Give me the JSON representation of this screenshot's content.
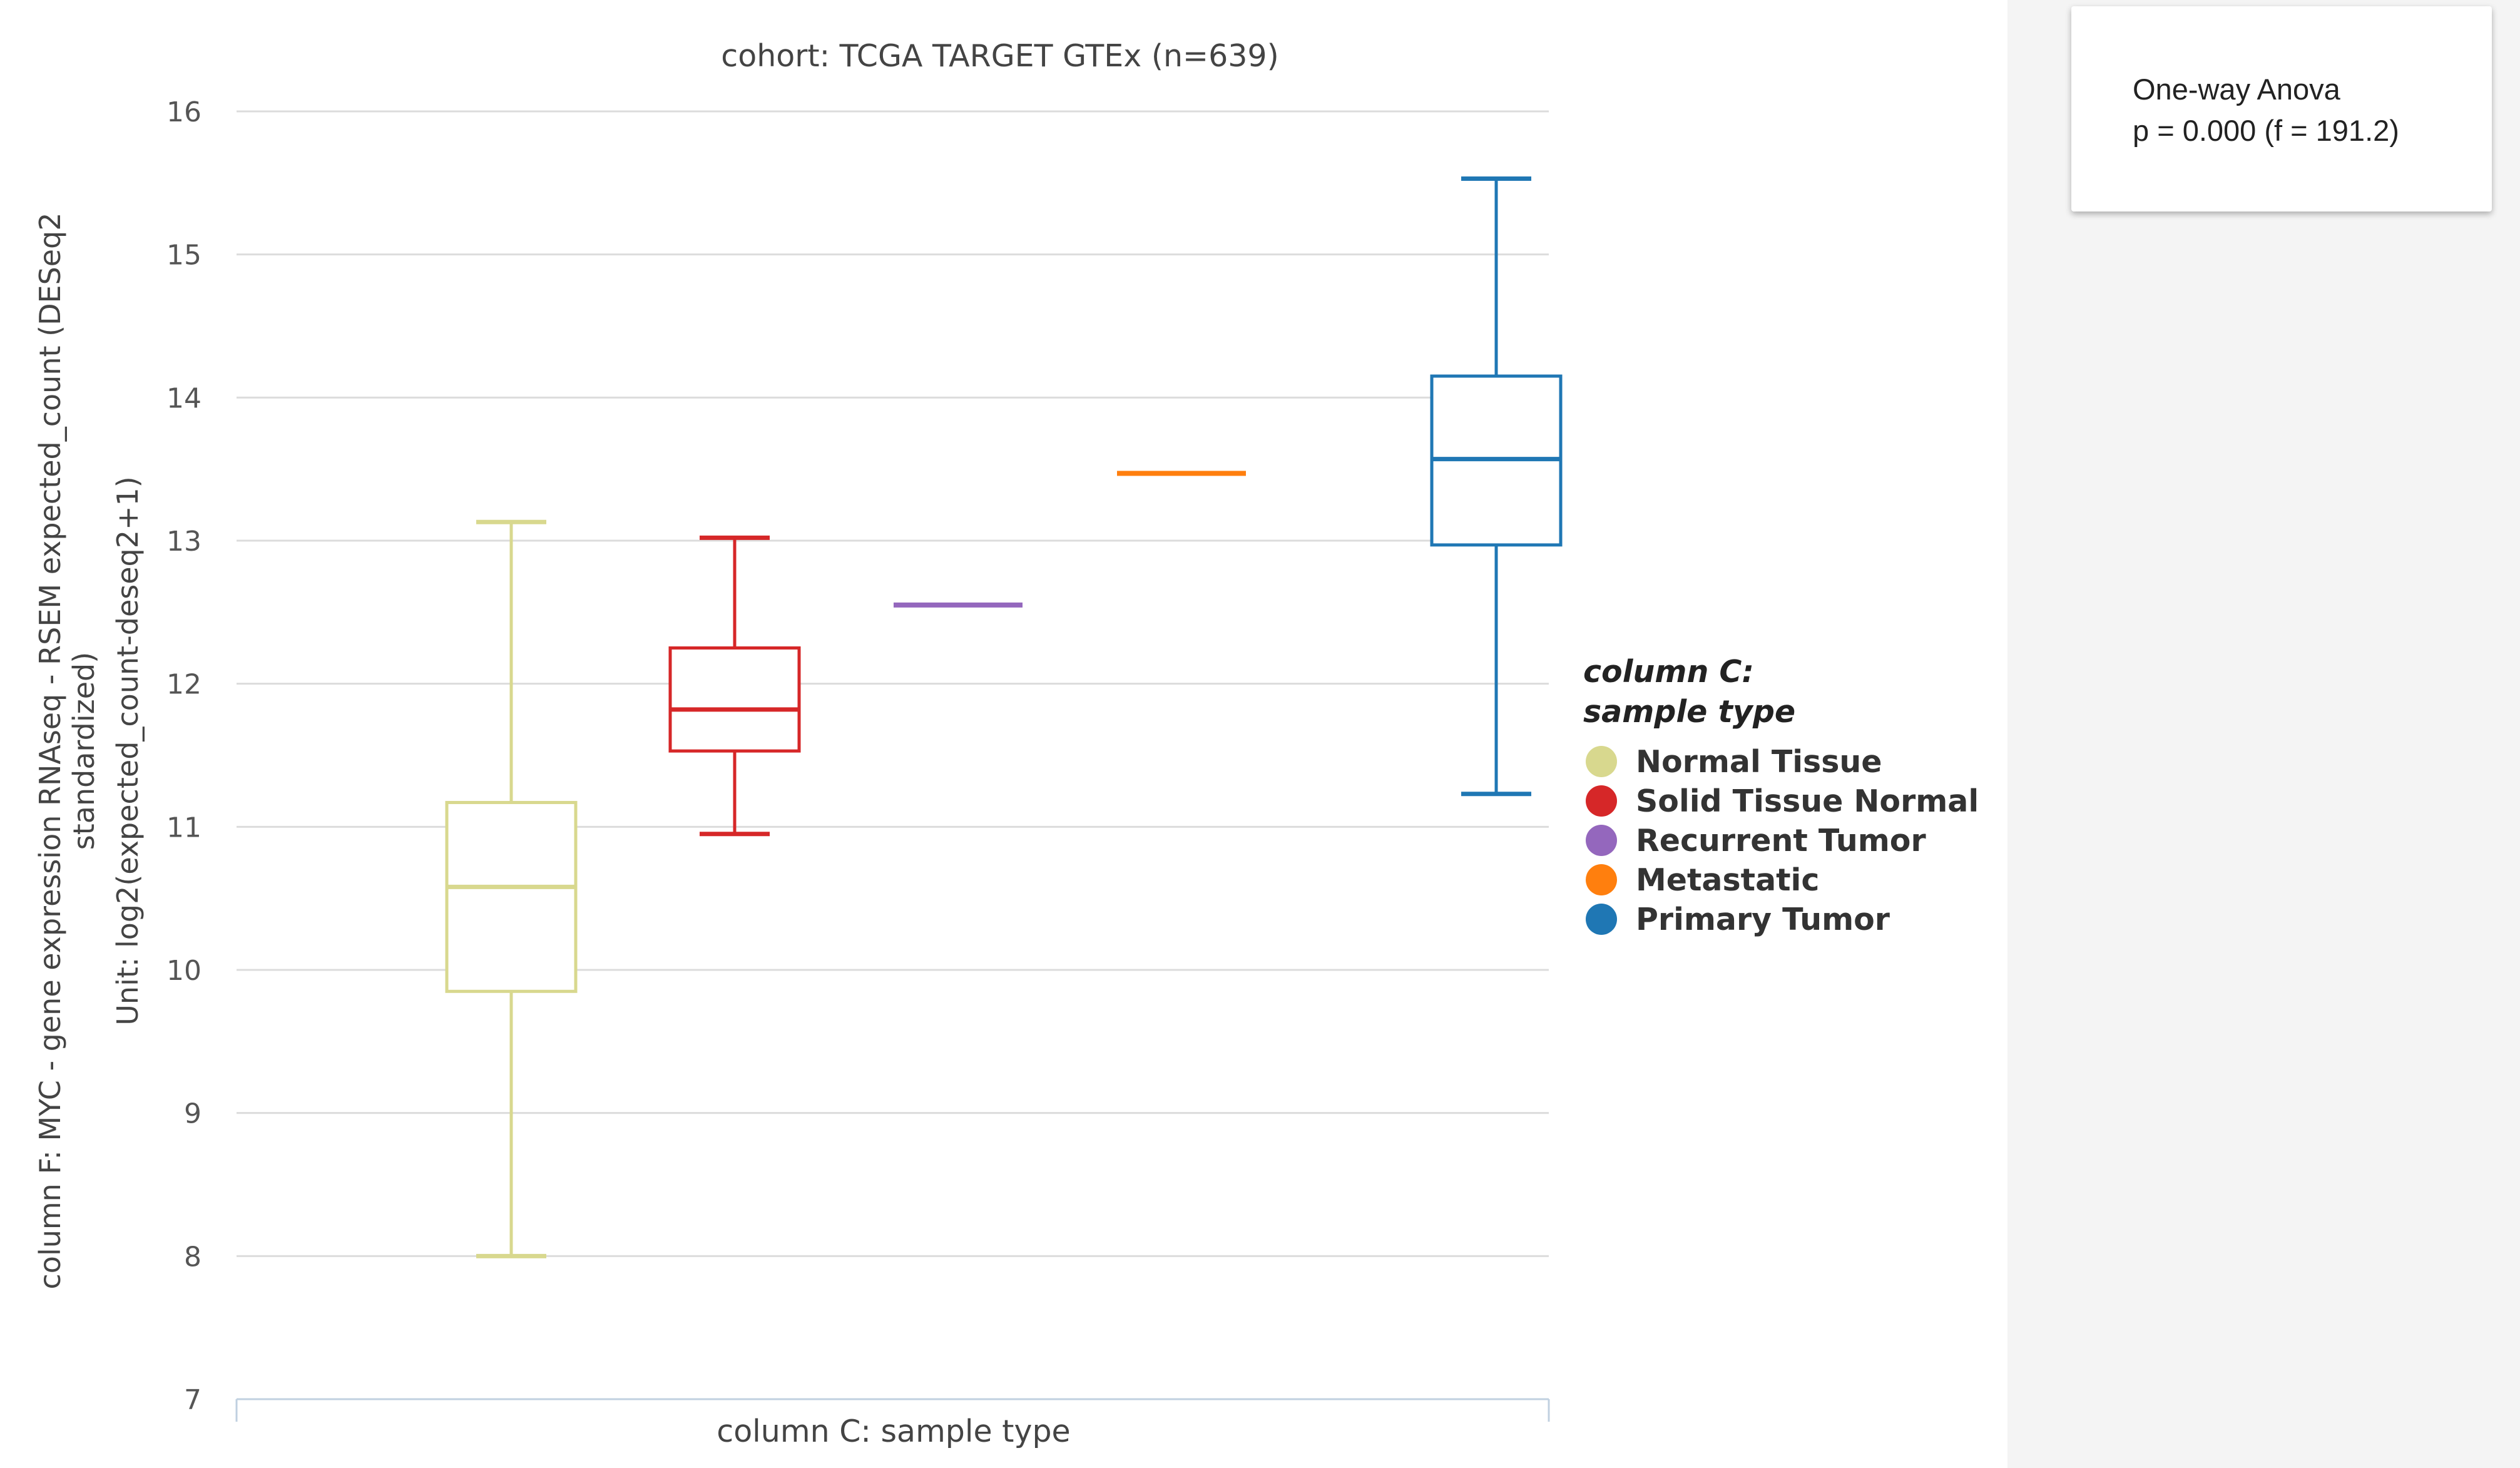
{
  "stats_panel": {
    "test_name": "One-way Anova",
    "result": "p = 0.000 (f = 191.2)"
  },
  "chart_data": {
    "type": "box",
    "title": "cohort: TCGA TARGET GTEx (n=639)",
    "xlabel": "column C: sample type",
    "ylabel_lines": [
      "column F: MYC - gene expression RNAseq - RSEM expected_count (DESeq2",
      "standardized)",
      "Unit: log2(expected_count-deseq2+1)"
    ],
    "ylim": [
      7,
      16
    ],
    "yticks": [
      7,
      8,
      9,
      10,
      11,
      12,
      13,
      14,
      15,
      16
    ],
    "grid": true,
    "legend": {
      "title_lines": [
        "column C:",
        "sample type"
      ],
      "placement": "right"
    },
    "series": [
      {
        "name": "Normal Tissue",
        "color": "#d8d88e",
        "min": 8.0,
        "q1": 9.85,
        "median": 10.58,
        "q3": 11.17,
        "max": 13.13
      },
      {
        "name": "Solid Tissue Normal",
        "color": "#d62728",
        "min": 10.95,
        "q1": 11.53,
        "median": 11.82,
        "q3": 12.25,
        "max": 13.02
      },
      {
        "name": "Recurrent Tumor",
        "color": "#9467bd",
        "min": 12.55,
        "q1": 12.55,
        "median": 12.55,
        "q3": 12.55,
        "max": 12.55
      },
      {
        "name": "Metastatic",
        "color": "#ff7f0e",
        "min": 13.47,
        "q1": 13.47,
        "median": 13.47,
        "q3": 13.47,
        "max": 13.47
      },
      {
        "name": "Primary Tumor",
        "color": "#1f77b4",
        "min": 11.23,
        "q1": 12.97,
        "median": 13.57,
        "q3": 14.15,
        "max": 15.53
      }
    ]
  }
}
